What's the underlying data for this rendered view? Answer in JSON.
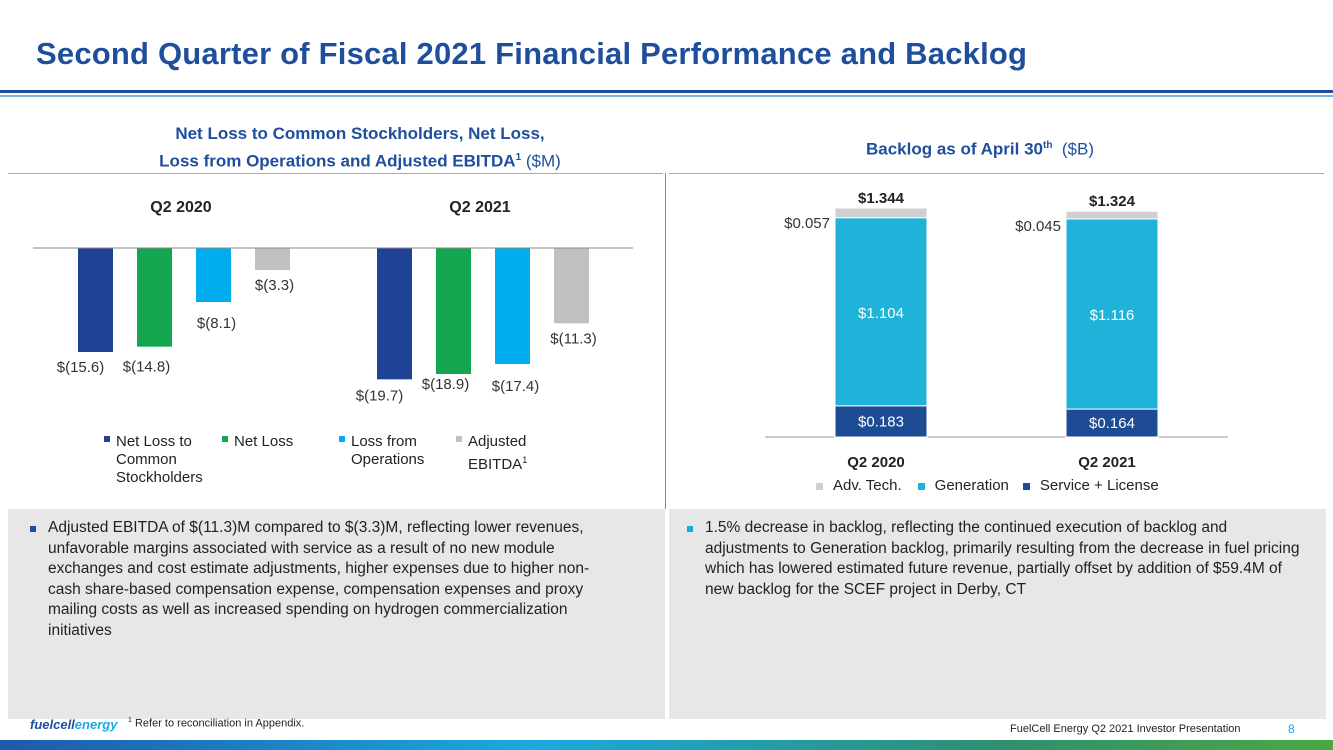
{
  "page": {
    "title": "Second Quarter of Fiscal 2021 Financial Performance and Backlog",
    "footnote_marker": "1",
    "footnote_text": "Refer to reconciliation in Appendix.",
    "footer_logo_part1": "fuelcell",
    "footer_logo_part2": "energy",
    "footer_text": "FuelCell Energy Q2 2021 Investor Presentation",
    "page_number": "8"
  },
  "left_panel": {
    "title_line1": "Net Loss to Common Stockholders, Net Loss,",
    "title_line2": "Loss from Operations and Adjusted EBITDA",
    "title_sup": "1",
    "title_unit": "($M)"
  },
  "right_panel": {
    "title": "Backlog as of April 30",
    "title_sup": "th",
    "title_unit": "($B)"
  },
  "colors": {
    "title_blue": "#1f4e9c",
    "dark_blue": "#1f4196",
    "green": "#13a64f",
    "light_blue": "#00aeef",
    "gray": "#c0c0c0",
    "generation": "#1fb3d9",
    "service": "#1e4c94",
    "adv_tech": "#cfcfcf"
  },
  "chart_data": [
    {
      "type": "bar",
      "group_labels": [
        "Q2 2020",
        "Q2 2021"
      ],
      "series": [
        {
          "name": "Net Loss to Common Stockholders",
          "legend_lines": [
            "Net Loss to",
            "Common",
            "Stockholders"
          ],
          "color": "#1f4196",
          "values": [
            -15.6,
            -19.7
          ],
          "labels": [
            "$(15.6)",
            "$(19.7)"
          ]
        },
        {
          "name": "Net Loss",
          "legend_lines": [
            "Net Loss"
          ],
          "color": "#13a64f",
          "values": [
            -14.8,
            -18.9
          ],
          "labels": [
            "$(14.8)",
            "$(18.9)"
          ]
        },
        {
          "name": "Loss from Operations",
          "legend_lines": [
            "Loss from",
            "Operations"
          ],
          "color": "#00aeef",
          "values": [
            -8.1,
            -17.4
          ],
          "labels": [
            "$(8.1)",
            "$(17.4)"
          ]
        },
        {
          "name": "Adjusted EBITDA",
          "legend_lines": [
            "Adjusted",
            "EBITDA"
          ],
          "legend_sup": "1",
          "color": "#c0c0c0",
          "values": [
            -3.3,
            -11.3
          ],
          "labels": [
            "$(3.3)",
            "$(11.3)"
          ]
        }
      ],
      "ylim": [
        -21,
        0
      ]
    },
    {
      "type": "bar",
      "stacked": true,
      "categories": [
        "Q2 2020",
        "Q2 2021"
      ],
      "totals": [
        "$1.344",
        "$1.324"
      ],
      "series": [
        {
          "name": "Service + License",
          "color": "#1e4c94",
          "values": [
            0.183,
            0.164
          ],
          "labels": [
            "$0.183",
            "$0.164"
          ]
        },
        {
          "name": "Generation",
          "color": "#1fb3d9",
          "values": [
            1.104,
            1.116
          ],
          "labels": [
            "$1.104",
            "$1.116"
          ]
        },
        {
          "name": "Adv. Tech.",
          "color": "#cfcfcf",
          "values": [
            0.057,
            0.045
          ],
          "labels": [
            "$0.057",
            "$0.045"
          ]
        }
      ],
      "legend_order": [
        "Adv. Tech.",
        "Generation",
        "Service + License"
      ],
      "ylim": [
        0,
        1.344
      ]
    }
  ],
  "bullets_left": [
    "Adjusted EBITDA of $(11.3)M compared to $(3.3)M, reflecting lower revenues, unfavorable margins associated with service as a result of no new module exchanges and cost estimate adjustments, higher expenses due to higher non-cash share-based compensation expense, compensation expenses and proxy mailing costs as well as increased spending on hydrogen commercialization initiatives"
  ],
  "bullets_right": [
    "1.5% decrease in backlog, reflecting the continued execution of backlog and adjustments to Generation backlog, primarily resulting from the decrease in fuel pricing which has lowered estimated future revenue, partially offset by addition of $59.4M of new backlog for the SCEF project in Derby, CT"
  ]
}
